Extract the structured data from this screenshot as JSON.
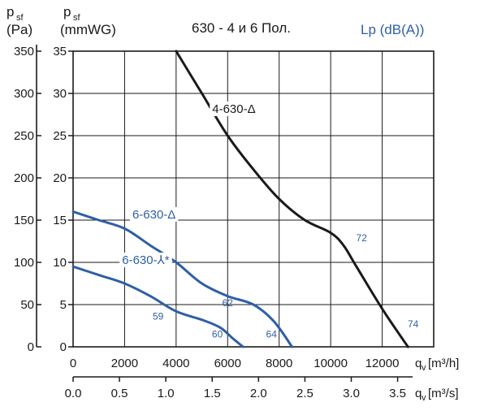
{
  "header": {
    "pa_symbol": "p",
    "pa_sub": "sf",
    "pa_unit": "(Pa)",
    "mm_symbol": "p",
    "mm_sub": "sf",
    "mm_unit": "(mmWG)",
    "title": "630 - 4 и 6 Пол.",
    "lp_label": "Lp (dB(A))"
  },
  "colors": {
    "black_curve": "#1a1a1a",
    "blue_curve": "#2f5fa6",
    "grid": "#1a1a1a"
  },
  "chart_data": {
    "type": "line",
    "title": "630 - 4 и 6 Пол.",
    "x": {
      "label_prefix": "q",
      "label_sub": "v",
      "label_unit": "[m³/h]",
      "range": [
        0,
        14000
      ],
      "ticks": [
        "0",
        "2000",
        "4000",
        "6000",
        "8000",
        "10000",
        "12000"
      ]
    },
    "x2": {
      "label_prefix": "q",
      "label_sub": "v",
      "label_unit": "[m³/s]",
      "range": [
        0,
        3.889
      ],
      "ticks": [
        "0.0",
        "0.5",
        "1.0",
        "1.5",
        "2.0",
        "2.5",
        "3.0",
        "3.5"
      ]
    },
    "y": {
      "label": "(mmWG)",
      "range": [
        0,
        35
      ],
      "ticks": [
        "0",
        "5",
        "10",
        "15",
        "20",
        "25",
        "30",
        "35"
      ]
    },
    "y2": {
      "label": "(Pa)",
      "range": [
        0,
        350
      ],
      "ticks": [
        "0",
        "50",
        "100",
        "150",
        "200",
        "250",
        "300",
        "350"
      ]
    },
    "grid": true,
    "series": [
      {
        "name": "4-630-Δ",
        "color": "#1a1a1a",
        "points": [
          [
            4000,
            35
          ],
          [
            5000,
            30
          ],
          [
            6000,
            25
          ],
          [
            7000,
            21
          ],
          [
            8000,
            17.5
          ],
          [
            9000,
            15
          ],
          [
            10000,
            13.5
          ],
          [
            10500,
            12
          ],
          [
            11000,
            9.5
          ],
          [
            12000,
            4.5
          ],
          [
            13000,
            0
          ]
        ]
      },
      {
        "name": "6-630-Δ",
        "color": "#2f5fa6",
        "points": [
          [
            0,
            16
          ],
          [
            1000,
            15
          ],
          [
            2000,
            14
          ],
          [
            3000,
            12
          ],
          [
            4000,
            10
          ],
          [
            5000,
            7.5
          ],
          [
            6000,
            6
          ],
          [
            7000,
            5
          ],
          [
            7800,
            3
          ],
          [
            8500,
            0
          ]
        ]
      },
      {
        "name": "6-630-⅄*",
        "color": "#2f5fa6",
        "points": [
          [
            0,
            9.5
          ],
          [
            1000,
            8.5
          ],
          [
            2000,
            7.5
          ],
          [
            3000,
            6
          ],
          [
            4000,
            4.2
          ],
          [
            5000,
            3.2
          ],
          [
            5700,
            2.3
          ],
          [
            6200,
            1
          ],
          [
            6600,
            0
          ]
        ]
      }
    ],
    "annotations": {
      "curve_labels": [
        "4-630-Δ",
        "6-630-Δ",
        "6-630-⅄*"
      ],
      "lp_values": [
        {
          "text": "72",
          "x": 11200,
          "y": 12.5
        },
        {
          "text": "74",
          "x": 13200,
          "y": 2.3
        },
        {
          "text": "62",
          "x": 6000,
          "y": 4.8
        },
        {
          "text": "59",
          "x": 3300,
          "y": 3.2
        },
        {
          "text": "60",
          "x": 5600,
          "y": 1.1
        },
        {
          "text": "64",
          "x": 7700,
          "y": 1.1
        }
      ]
    }
  }
}
